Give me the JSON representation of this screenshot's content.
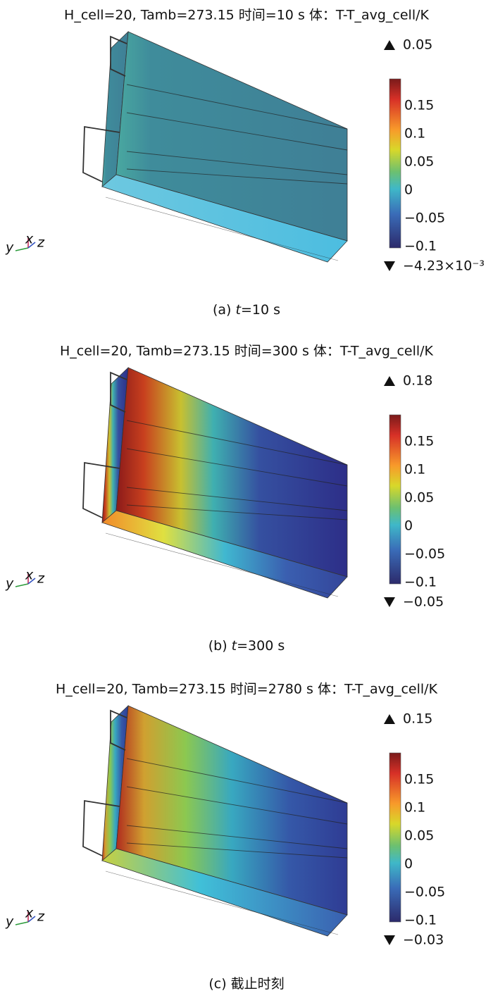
{
  "panels": [
    {
      "title": "H_cell=20, Tamb=273.15 时间=10 s 体：T-T_avg_cell/K",
      "max": "0.05",
      "min": "−4.23×10⁻³",
      "caption_prefix": "(a) ",
      "caption_var": "t",
      "caption_rest": "=10 s"
    },
    {
      "title": "H_cell=20, Tamb=273.15 时间=300 s 体：T-T_avg_cell/K",
      "max": "0.18",
      "min": "−0.05",
      "caption_prefix": "(b) ",
      "caption_var": "t",
      "caption_rest": "=300 s"
    },
    {
      "title": "H_cell=20, Tamb=273.15 时间=2780 s 体：T-T_avg_cell/K",
      "max": "0.15",
      "min": "−0.03",
      "caption_prefix": "(c) 截止时刻"
    }
  ],
  "colorbar_ticks": [
    "0.15",
    "0.1",
    "0.05",
    "0",
    "−0.05",
    "−0.1"
  ],
  "triad": {
    "y": "y",
    "x": "x",
    "z": "z"
  }
}
